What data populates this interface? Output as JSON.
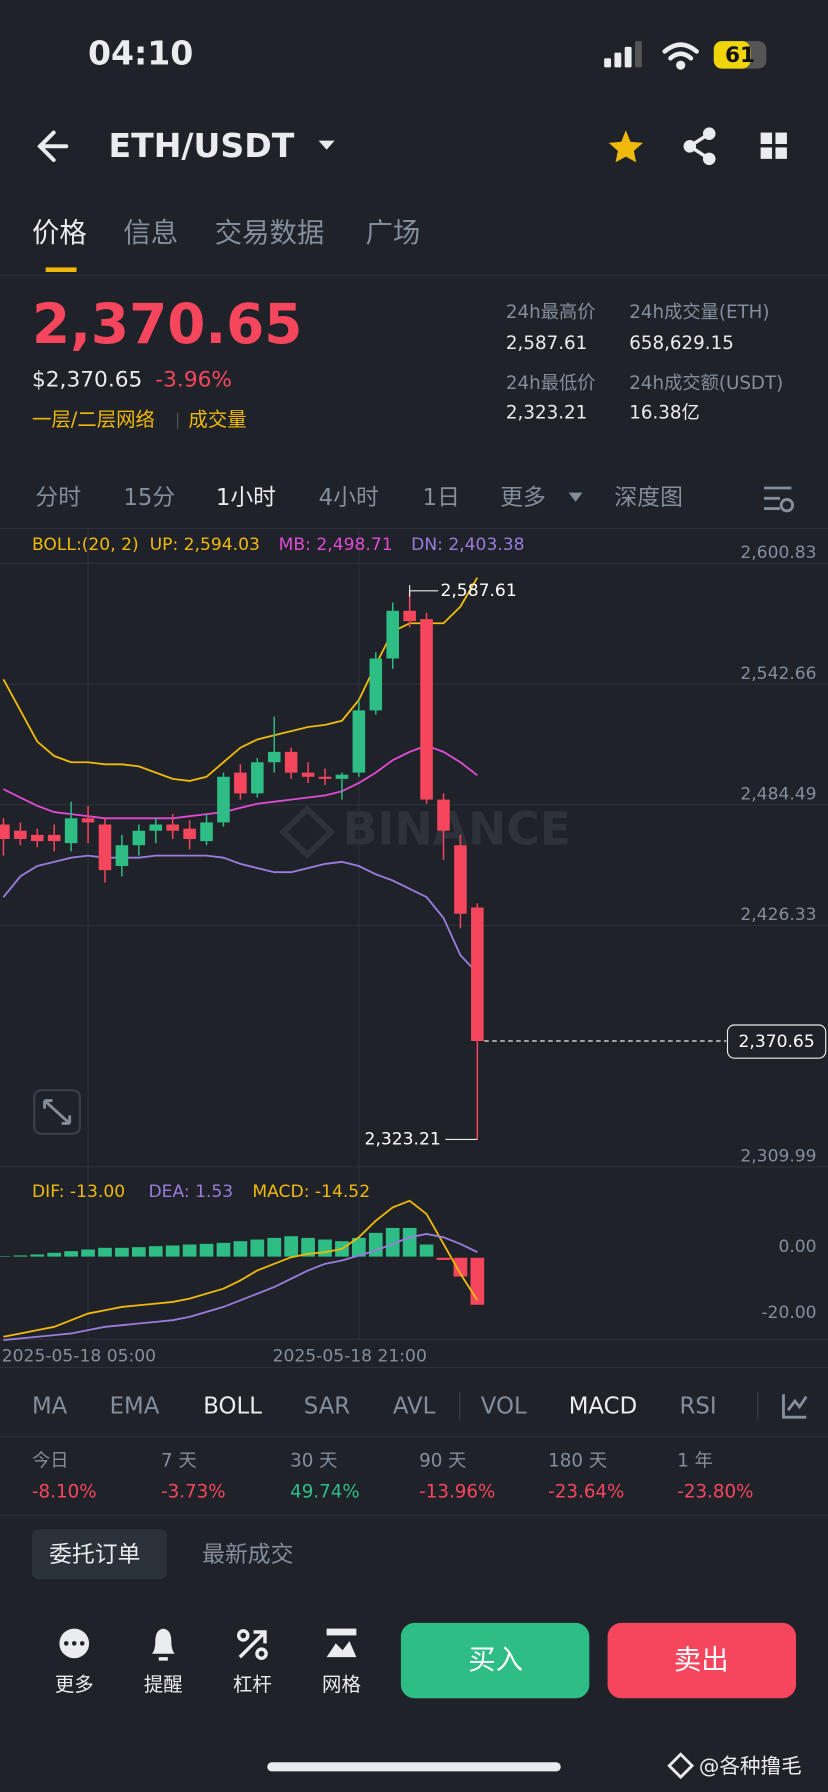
{
  "status": {
    "time": "04:10",
    "battery": "61"
  },
  "header": {
    "pair": "ETH/USDT"
  },
  "tabs": [
    "价格",
    "信息",
    "交易数据",
    "广场"
  ],
  "price": {
    "last": "2,370.65",
    "usd": "$2,370.65",
    "change": "-3.96%",
    "tags": [
      "一层/二层网络",
      "成交量"
    ]
  },
  "stats": [
    {
      "label": "24h最高价",
      "value": "2,587.61"
    },
    {
      "label": "24h成交量(ETH)",
      "value": "658,629.15"
    },
    {
      "label": "24h最低价",
      "value": "2,323.21"
    },
    {
      "label": "24h成交额(USDT)",
      "value": "16.38亿"
    }
  ],
  "intervals": [
    "分时",
    "15分",
    "1小时",
    "4小时",
    "1日",
    "更多",
    "深度图"
  ],
  "watermark": "BINANCE",
  "chart_data": [
    {
      "type": "candlestick",
      "indicator": "BOLL:(20, 2)",
      "up_color": "#2ebd85",
      "down_color": "#f6465d",
      "categories": [
        null,
        null,
        null,
        null,
        null,
        "2025-05-18 05:00",
        null,
        null,
        null,
        null,
        null,
        null,
        null,
        null,
        null,
        null,
        null,
        null,
        null,
        null,
        null,
        "2025-05-18 21:00",
        null,
        null,
        null,
        null,
        null,
        null,
        null
      ],
      "open": [
        2475,
        2472,
        2470,
        2470,
        2466,
        2478,
        2475,
        2455,
        2465,
        2472,
        2475,
        2473,
        2467,
        2476,
        2500,
        2490,
        2505,
        2510,
        2500,
        2498,
        2497,
        2500,
        2530,
        2555,
        2578,
        2574,
        2487,
        2465,
        2435
      ],
      "high": [
        2478,
        2476,
        2473,
        2475,
        2486,
        2484,
        2478,
        2470,
        2475,
        2478,
        2480,
        2477,
        2480,
        2500,
        2504,
        2507,
        2527,
        2512,
        2505,
        2502,
        2500,
        2535,
        2558,
        2582,
        2587.61,
        2577,
        2490,
        2470,
        2437
      ],
      "low": [
        2460,
        2465,
        2464,
        2462,
        2462,
        2466,
        2447,
        2450,
        2460,
        2466,
        2468,
        2463,
        2465,
        2474,
        2487,
        2488,
        2500,
        2497,
        2495,
        2494,
        2487,
        2498,
        2528,
        2550,
        2570,
        2485,
        2458,
        2425,
        2323.21
      ],
      "close": [
        2468,
        2468,
        2467,
        2467,
        2478,
        2476,
        2453,
        2465,
        2472,
        2475,
        2472,
        2468,
        2476,
        2498,
        2490,
        2505,
        2510,
        2500,
        2498,
        2497,
        2499,
        2530,
        2555,
        2578,
        2573,
        2487,
        2472,
        2432,
        2370.65
      ],
      "series": [
        {
          "name": "UP: 2,594.03",
          "color": "#f0b90b",
          "values": [
            2545,
            2530,
            2515,
            2508,
            2505,
            2505,
            2504,
            2504,
            2503,
            2500,
            2497,
            2496,
            2498,
            2505,
            2512,
            2516,
            2518,
            2520,
            2522,
            2523,
            2525,
            2535,
            2552,
            2568,
            2572,
            2572,
            2572,
            2580,
            2594.03
          ]
        },
        {
          "name": "MB: 2,498.71",
          "color": "#e04bd5",
          "values": [
            2492,
            2488,
            2484,
            2481,
            2480,
            2479,
            2478,
            2478,
            2478,
            2478,
            2478,
            2479,
            2480,
            2481,
            2483,
            2485,
            2486,
            2487,
            2488,
            2489,
            2491,
            2495,
            2500,
            2506,
            2510,
            2513,
            2510,
            2505,
            2498.71
          ]
        },
        {
          "name": "DN: 2,403.38",
          "color": "#9a7cdd",
          "values": [
            2440,
            2450,
            2455,
            2457,
            2459,
            2460,
            2459,
            2459,
            2459,
            2460,
            2460,
            2460,
            2460,
            2459,
            2456,
            2454,
            2452,
            2452,
            2454,
            2456,
            2457,
            2455,
            2451,
            2448,
            2444,
            2440,
            2430,
            2412,
            2403.38
          ]
        }
      ],
      "ylim": [
        2309.99,
        2600.83
      ],
      "yticks": [
        {
          "value": 2309.99,
          "label": "2,309.99"
        },
        {
          "value": 2426.33,
          "label": "2,426.33"
        },
        {
          "value": 2484.49,
          "label": "2,484.49"
        },
        {
          "value": 2542.66,
          "label": "2,542.66"
        },
        {
          "value": 2600.83,
          "label": "2,600.83"
        }
      ],
      "last": {
        "value": 2370.65,
        "label": "2,370.65"
      },
      "annotations": [
        {
          "value": 2587.61,
          "label": "2,587.61"
        },
        {
          "value": 2323.21,
          "label": "2,323.21"
        }
      ]
    },
    {
      "type": "macd",
      "histogram": {
        "name": "MACD: -14.52",
        "values": [
          0.5,
          0.7,
          1,
          1.5,
          2,
          2.5,
          3,
          3,
          3.2,
          3.5,
          3.7,
          4,
          4.2,
          4.5,
          5,
          5.5,
          6,
          6.5,
          6,
          5.5,
          5,
          6,
          7.5,
          9,
          9,
          4,
          -1,
          -6,
          -14.52
        ]
      },
      "series": [
        {
          "name": "DIF: -13.00",
          "color": "#f0b90b",
          "values": [
            -24,
            -23,
            -22,
            -21,
            -19,
            -17,
            -16,
            -15,
            -14.5,
            -14,
            -13.5,
            -12.5,
            -11,
            -9.5,
            -7,
            -4,
            -2,
            0,
            1,
            1.5,
            2.5,
            6,
            11,
            15,
            17,
            13,
            4,
            -5,
            -13
          ]
        },
        {
          "name": "DEA: 1.53",
          "color": "#9a7cdd",
          "values": [
            -25,
            -24.5,
            -24,
            -23.5,
            -23,
            -22,
            -21,
            -20.5,
            -20,
            -19.5,
            -19,
            -18,
            -16.5,
            -15,
            -13,
            -11,
            -9,
            -6.5,
            -4,
            -2,
            -1,
            0.5,
            2,
            4,
            6,
            7,
            6,
            4,
            1.53
          ]
        }
      ],
      "ylim": [
        -24.8,
        26.9
      ],
      "yticks": [
        {
          "value": -20,
          "label": "-20.00"
        },
        {
          "value": 0,
          "label": "0.00"
        }
      ]
    }
  ],
  "indicators": [
    "MA",
    "EMA",
    "BOLL",
    "SAR",
    "AVL",
    "VOL",
    "MACD",
    "RSI"
  ],
  "performance": [
    {
      "period": "今日",
      "change": "-8.10%"
    },
    {
      "period": "7 天",
      "change": "-3.73%"
    },
    {
      "period": "30 天",
      "change": "49.74%"
    },
    {
      "period": "90 天",
      "change": "-13.96%"
    },
    {
      "period": "180 天",
      "change": "-23.64%"
    },
    {
      "period": "1 年",
      "change": "-23.80%"
    }
  ],
  "order_tabs": [
    "委托订单",
    "最新成交"
  ],
  "actions": [
    "更多",
    "提醒",
    "杠杆",
    "网格"
  ],
  "buy": "买入",
  "sell": "卖出",
  "credit": "@各种撸毛"
}
